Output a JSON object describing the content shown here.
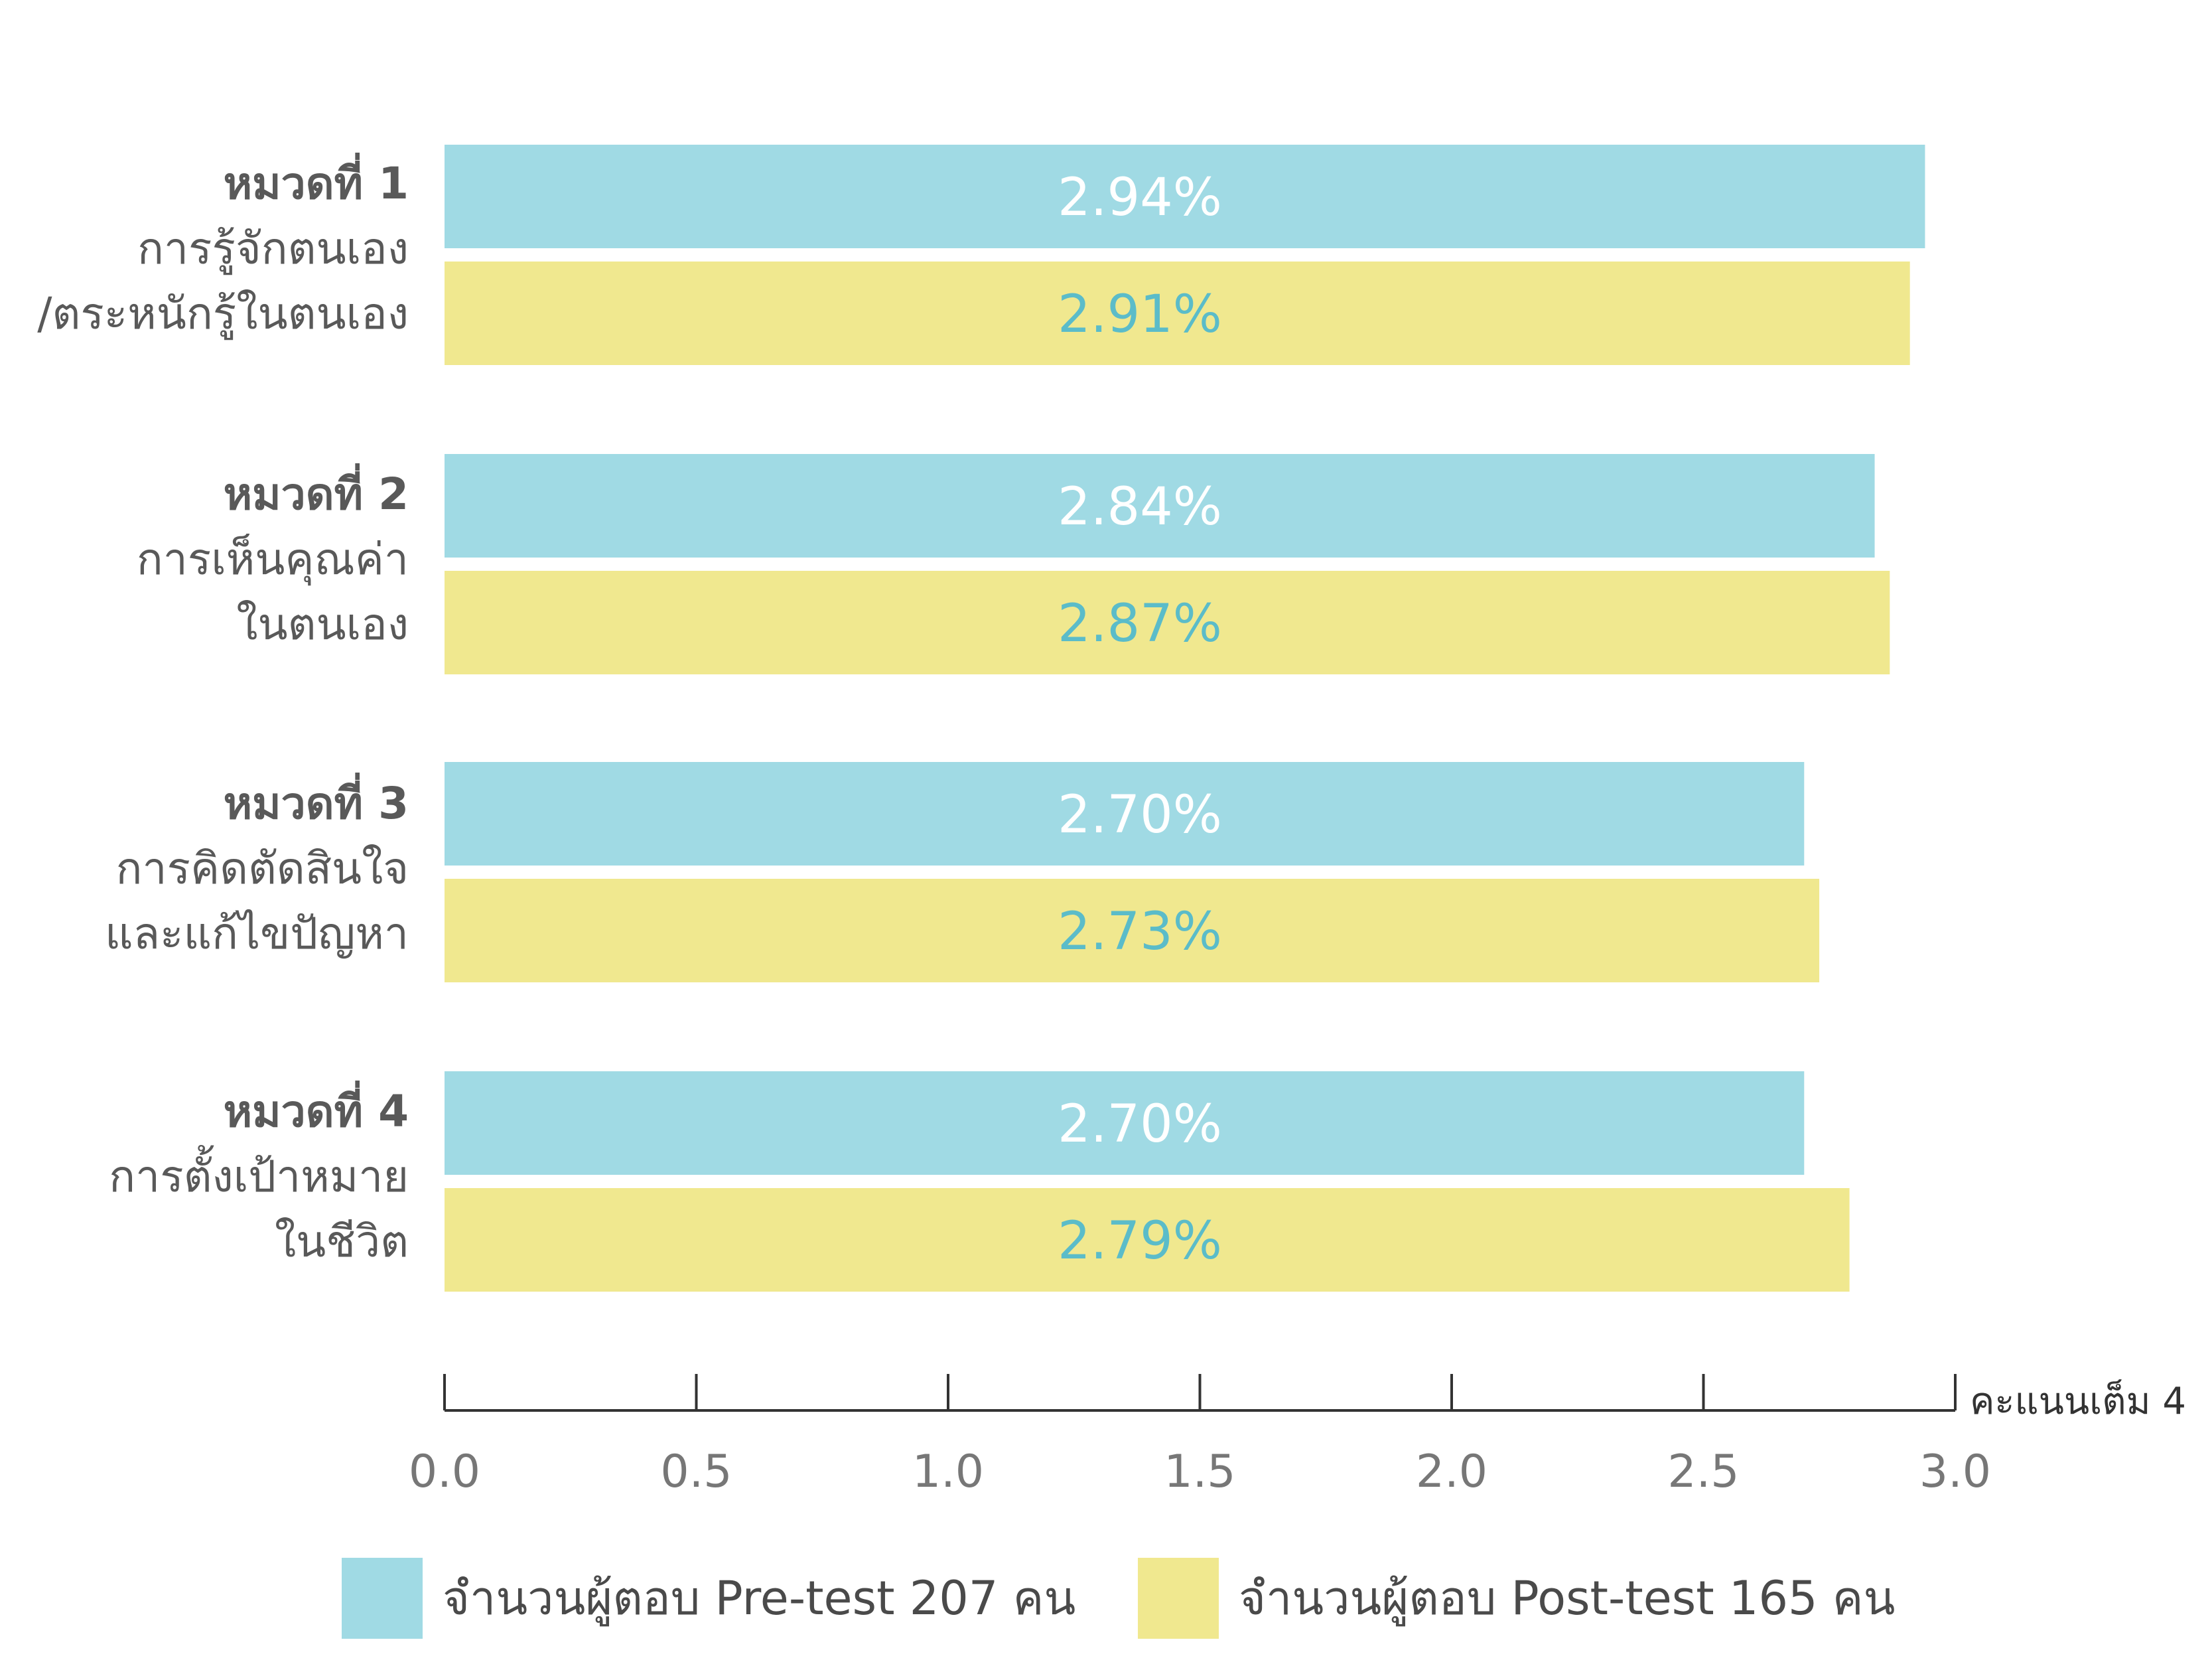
{
  "chart_data": {
    "type": "bar",
    "orientation": "horizontal",
    "categories": [
      {
        "title": "หมวดที่ 1",
        "lines": [
          "การรู้จักตนเอง",
          "/ตระหนักรู้ในตนเอง"
        ]
      },
      {
        "title": "หมวดที่ 2",
        "lines": [
          "การเห็นคุณค่า",
          "ในตนเอง"
        ]
      },
      {
        "title": "หมวดที่ 3",
        "lines": [
          "การคิดตัดสินใจ",
          "และแก้ไขปัญหา"
        ]
      },
      {
        "title": "หมวดที่ 4",
        "lines": [
          "การตั้งเป้าหมาย",
          "ในชีวิต"
        ]
      }
    ],
    "series": [
      {
        "name": "จำนวนผู้ตอบ Pre-test 207 คน",
        "color": "#a0dae4",
        "label_color": "#ffffff",
        "values": [
          2.94,
          2.84,
          2.7,
          2.7
        ],
        "data_labels": [
          "2.94%",
          "2.84%",
          "2.70%",
          "2.70%"
        ]
      },
      {
        "name": "จำนวนผู้ตอบ Post-test 165 คน",
        "color": "#f0e88f",
        "label_color": "#5bbcc9",
        "values": [
          2.91,
          2.87,
          2.73,
          2.79
        ],
        "data_labels": [
          "2.91%",
          "2.87%",
          "2.73%",
          "2.79%"
        ]
      }
    ],
    "xlim": [
      0,
      3.0
    ],
    "xticks": [
      "0.0",
      "0.5",
      "1.0",
      "1.5",
      "2.0",
      "2.5",
      "3.0"
    ],
    "xlabel": "คะแนนเต็ม 4",
    "grid": false,
    "legend_position": "bottom"
  }
}
